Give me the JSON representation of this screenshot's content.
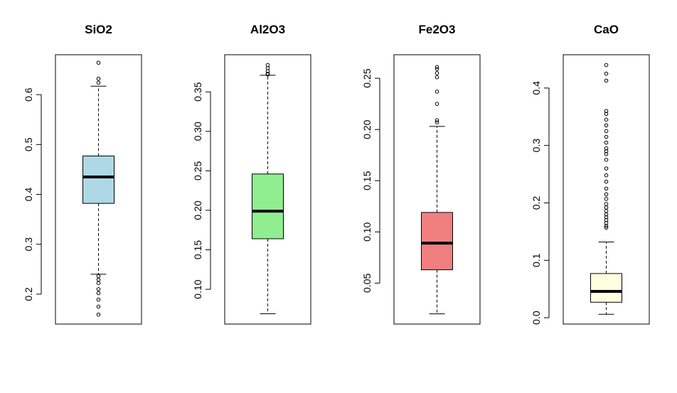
{
  "chart_data": [
    {
      "type": "box",
      "title": "SiO2",
      "fill": "#add8e6",
      "ylim": [
        0.14,
        0.68
      ],
      "ticks": [
        0.2,
        0.3,
        0.4,
        0.5,
        0.6
      ],
      "tick_labels": [
        "0.2",
        "0.3",
        "0.4",
        "0.5",
        "0.6"
      ],
      "box": {
        "whisker_low": 0.24,
        "q1": 0.382,
        "median": 0.435,
        "q3": 0.477,
        "whisker_high": 0.617
      },
      "outliers": [
        0.664,
        0.632,
        0.624,
        0.236,
        0.229,
        0.222,
        0.21,
        0.202,
        0.189,
        0.175,
        0.159
      ]
    },
    {
      "type": "box",
      "title": "Al2O3",
      "fill": "#90ee90",
      "ylim": [
        0.056,
        0.397
      ],
      "ticks": [
        0.1,
        0.15,
        0.2,
        0.25,
        0.3,
        0.35
      ],
      "tick_labels": [
        "0.10",
        "0.15",
        "0.20",
        "0.25",
        "0.30",
        "0.35"
      ],
      "box": {
        "whisker_low": 0.069,
        "q1": 0.164,
        "median": 0.199,
        "q3": 0.246,
        "whisker_high": 0.371
      },
      "outliers": [
        0.384,
        0.38,
        0.376,
        0.373,
        0.372
      ]
    },
    {
      "type": "box",
      "title": "Fe2O3",
      "fill": "#f08080",
      "ylim": [
        0.01,
        0.273
      ],
      "ticks": [
        0.05,
        0.1,
        0.15,
        0.2,
        0.25
      ],
      "tick_labels": [
        "0.05",
        "0.10",
        "0.15",
        "0.20",
        "0.25"
      ],
      "box": {
        "whisker_low": 0.02,
        "q1": 0.063,
        "median": 0.089,
        "q3": 0.119,
        "whisker_high": 0.203
      },
      "outliers": [
        0.261,
        0.259,
        0.255,
        0.251,
        0.237,
        0.225,
        0.209,
        0.207
      ]
    },
    {
      "type": "box",
      "title": "CaO",
      "fill": "#ffffe0",
      "ylim": [
        -0.011,
        0.458
      ],
      "ticks": [
        0.0,
        0.1,
        0.2,
        0.3,
        0.4
      ],
      "tick_labels": [
        "0.0",
        "0.1",
        "0.2",
        "0.3",
        "0.4"
      ],
      "box": {
        "whisker_low": 0.006,
        "q1": 0.027,
        "median": 0.046,
        "q3": 0.077,
        "whisker_high": 0.132
      },
      "outliers": [
        0.44,
        0.425,
        0.413,
        0.36,
        0.355,
        0.345,
        0.335,
        0.325,
        0.315,
        0.305,
        0.295,
        0.29,
        0.285,
        0.275,
        0.26,
        0.248,
        0.237,
        0.225,
        0.215,
        0.207,
        0.198,
        0.192,
        0.186,
        0.18,
        0.175,
        0.17,
        0.165,
        0.16,
        0.157
      ]
    }
  ]
}
